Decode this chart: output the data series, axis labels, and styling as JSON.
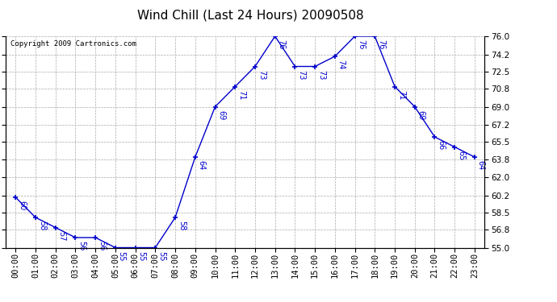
{
  "title": "Wind Chill (Last 24 Hours) 20090508",
  "copyright": "Copyright 2009 Cartronics.com",
  "hours": [
    "00:00",
    "01:00",
    "02:00",
    "03:00",
    "04:00",
    "05:00",
    "06:00",
    "07:00",
    "08:00",
    "09:00",
    "10:00",
    "11:00",
    "12:00",
    "13:00",
    "14:00",
    "15:00",
    "16:00",
    "17:00",
    "18:00",
    "19:00",
    "20:00",
    "21:00",
    "22:00",
    "23:00"
  ],
  "values": [
    60,
    58,
    57,
    56,
    56,
    55,
    55,
    55,
    58,
    64,
    69,
    71,
    73,
    76,
    73,
    73,
    74,
    76,
    76,
    71,
    69,
    66,
    65,
    64
  ],
  "ylim": [
    55.0,
    76.0
  ],
  "yticks": [
    55.0,
    56.8,
    58.5,
    60.2,
    62.0,
    63.8,
    65.5,
    67.2,
    69.0,
    70.8,
    72.5,
    74.2,
    76.0
  ],
  "line_color": "#0000cc",
  "marker_color": "#0000cc",
  "bg_color": "#ffffff",
  "grid_color": "#aaaaaa",
  "title_fontsize": 11,
  "label_fontsize": 7,
  "tick_fontsize": 7.5,
  "copyright_fontsize": 6.5
}
